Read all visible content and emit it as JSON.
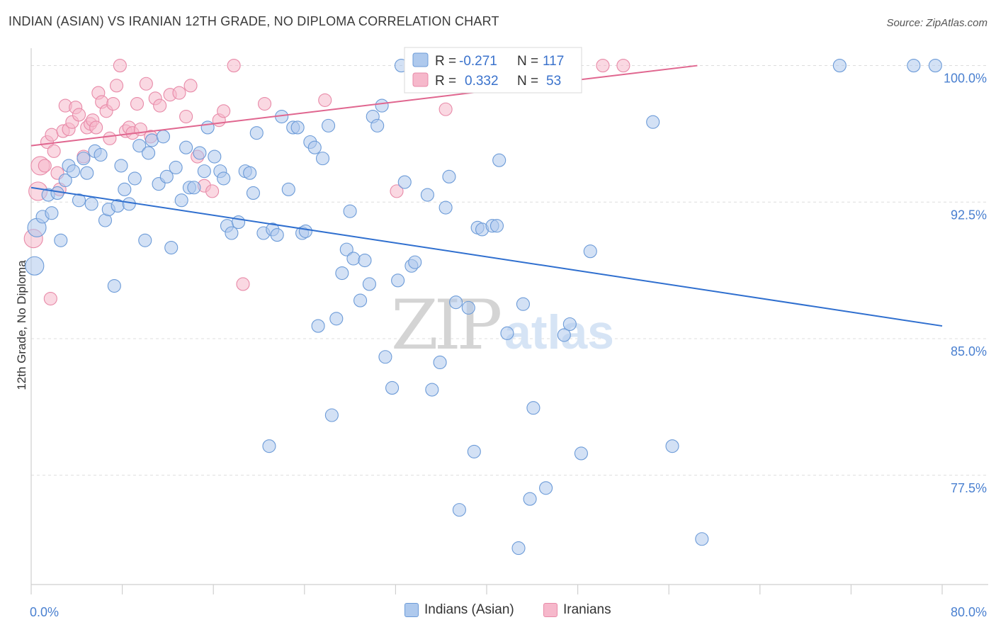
{
  "header": {
    "title": "INDIAN (ASIAN) VS IRANIAN 12TH GRADE, NO DIPLOMA CORRELATION CHART",
    "source": "Source: ZipAtlas.com"
  },
  "watermark": {
    "zip": "ZIP",
    "atlas": "atlas"
  },
  "legend_box": {
    "r_label": "R =",
    "n_label": "N =",
    "rows": [
      {
        "r": "-0.271",
        "n": "117"
      },
      {
        "r": "0.332",
        "n": "53"
      }
    ]
  },
  "colors": {
    "blue_fill": "#aec9ed",
    "blue_stroke": "#6c9bd8",
    "blue_line": "#2f6fcf",
    "pink_fill": "#f6b8cb",
    "pink_stroke": "#e88aa8",
    "pink_line": "#e0668f",
    "tick_label": "#4a80d0",
    "grid": "#dddddd"
  },
  "chart_data": {
    "type": "scatter",
    "title": "INDIAN (ASIAN) VS IRANIAN 12TH GRADE, NO DIPLOMA CORRELATION CHART",
    "ylabel": "12th Grade, No Diploma",
    "xlabel": "",
    "xlim": [
      0,
      80
    ],
    "ylim": [
      71.5,
      100.8
    ],
    "x_tick_labels": [
      {
        "value": 0,
        "label": "0.0%"
      },
      {
        "value": 80,
        "label": "80.0%"
      }
    ],
    "y_tick_labels": [
      {
        "value": 100,
        "label": "100.0%"
      },
      {
        "value": 92.5,
        "label": "92.5%"
      },
      {
        "value": 85,
        "label": "85.0%"
      },
      {
        "value": 77.5,
        "label": "77.5%"
      }
    ],
    "grid": true,
    "legend_position": "bottom",
    "series": [
      {
        "name": "Indians (Asian)",
        "color": "#aec9ed",
        "trend": {
          "x": [
            0,
            80
          ],
          "y": [
            93.3,
            85.7
          ]
        },
        "points": [
          [
            0.3,
            89.0
          ],
          [
            0.5,
            91.1
          ],
          [
            1.0,
            91.7
          ],
          [
            1.5,
            92.9
          ],
          [
            1.8,
            91.9
          ],
          [
            2.3,
            93.0
          ],
          [
            2.6,
            90.4
          ],
          [
            3.0,
            93.7
          ],
          [
            3.3,
            94.5
          ],
          [
            3.7,
            94.2
          ],
          [
            4.2,
            92.6
          ],
          [
            4.6,
            94.9
          ],
          [
            4.9,
            94.1
          ],
          [
            5.3,
            92.4
          ],
          [
            5.6,
            95.3
          ],
          [
            6.1,
            95.1
          ],
          [
            6.5,
            91.5
          ],
          [
            6.8,
            92.1
          ],
          [
            7.3,
            87.9
          ],
          [
            7.6,
            92.3
          ],
          [
            7.9,
            94.5
          ],
          [
            8.2,
            93.2
          ],
          [
            8.6,
            92.4
          ],
          [
            9.1,
            93.8
          ],
          [
            9.5,
            95.6
          ],
          [
            10.0,
            90.4
          ],
          [
            10.3,
            95.2
          ],
          [
            10.6,
            95.9
          ],
          [
            11.2,
            93.5
          ],
          [
            11.6,
            96.1
          ],
          [
            11.9,
            93.9
          ],
          [
            12.3,
            90.0
          ],
          [
            12.7,
            94.4
          ],
          [
            13.2,
            92.6
          ],
          [
            13.6,
            95.5
          ],
          [
            13.9,
            93.3
          ],
          [
            14.3,
            93.3
          ],
          [
            14.8,
            95.2
          ],
          [
            15.2,
            94.2
          ],
          [
            15.5,
            96.6
          ],
          [
            16.1,
            95.0
          ],
          [
            16.6,
            94.2
          ],
          [
            16.9,
            93.8
          ],
          [
            17.2,
            91.2
          ],
          [
            17.6,
            90.8
          ],
          [
            18.2,
            91.4
          ],
          [
            18.8,
            94.2
          ],
          [
            19.2,
            94.1
          ],
          [
            19.5,
            93.0
          ],
          [
            19.8,
            96.3
          ],
          [
            20.4,
            90.8
          ],
          [
            20.9,
            79.1
          ],
          [
            21.2,
            91.0
          ],
          [
            21.6,
            90.7
          ],
          [
            22.0,
            97.2
          ],
          [
            22.6,
            93.2
          ],
          [
            23.0,
            96.6
          ],
          [
            23.4,
            96.6
          ],
          [
            23.8,
            90.8
          ],
          [
            24.1,
            90.9
          ],
          [
            24.5,
            95.8
          ],
          [
            24.9,
            95.5
          ],
          [
            25.2,
            85.7
          ],
          [
            25.6,
            94.9
          ],
          [
            26.1,
            96.7
          ],
          [
            26.4,
            80.8
          ],
          [
            26.8,
            86.1
          ],
          [
            27.3,
            88.6
          ],
          [
            27.7,
            89.9
          ],
          [
            28.0,
            92.0
          ],
          [
            28.3,
            89.4
          ],
          [
            28.9,
            87.1
          ],
          [
            29.3,
            89.3
          ],
          [
            29.7,
            88.0
          ],
          [
            30.0,
            97.2
          ],
          [
            30.4,
            96.7
          ],
          [
            30.8,
            97.8
          ],
          [
            31.1,
            84.0
          ],
          [
            31.7,
            82.3
          ],
          [
            32.2,
            88.2
          ],
          [
            32.5,
            100.0
          ],
          [
            32.8,
            93.6
          ],
          [
            33.4,
            89.0
          ],
          [
            33.7,
            89.2
          ],
          [
            34.8,
            92.9
          ],
          [
            35.2,
            82.2
          ],
          [
            35.9,
            83.7
          ],
          [
            36.4,
            92.2
          ],
          [
            36.7,
            93.9
          ],
          [
            37.3,
            87.0
          ],
          [
            37.6,
            75.6
          ],
          [
            38.4,
            86.7
          ],
          [
            38.9,
            78.8
          ],
          [
            39.2,
            91.1
          ],
          [
            39.6,
            91.0
          ],
          [
            40.5,
            91.2
          ],
          [
            40.9,
            91.2
          ],
          [
            41.1,
            94.8
          ],
          [
            41.8,
            85.3
          ],
          [
            42.8,
            73.5
          ],
          [
            43.2,
            86.9
          ],
          [
            43.8,
            76.2
          ],
          [
            44.1,
            81.2
          ],
          [
            45.2,
            76.8
          ],
          [
            45.6,
            100.0
          ],
          [
            46.8,
            85.2
          ],
          [
            47.3,
            85.8
          ],
          [
            48.3,
            78.7
          ],
          [
            49.1,
            89.8
          ],
          [
            54.6,
            96.9
          ],
          [
            56.3,
            79.1
          ],
          [
            58.9,
            74.0
          ],
          [
            71.0,
            100.0
          ],
          [
            77.5,
            100.0
          ],
          [
            79.4,
            100.0
          ]
        ]
      },
      {
        "name": "Iranians",
        "color": "#f6b8cb",
        "trend": {
          "x": [
            0,
            58.5
          ],
          "y": [
            95.6,
            100.0
          ]
        },
        "points": [
          [
            0.2,
            90.5
          ],
          [
            0.6,
            93.1
          ],
          [
            0.8,
            94.5
          ],
          [
            1.2,
            94.5
          ],
          [
            1.4,
            95.8
          ],
          [
            1.7,
            87.2
          ],
          [
            1.8,
            96.2
          ],
          [
            2.0,
            95.3
          ],
          [
            2.3,
            94.1
          ],
          [
            2.5,
            93.2
          ],
          [
            2.8,
            96.4
          ],
          [
            3.0,
            97.8
          ],
          [
            3.3,
            96.5
          ],
          [
            3.6,
            96.9
          ],
          [
            3.9,
            97.7
          ],
          [
            4.2,
            97.3
          ],
          [
            4.6,
            95.0
          ],
          [
            4.9,
            96.6
          ],
          [
            5.2,
            96.8
          ],
          [
            5.4,
            97.0
          ],
          [
            5.7,
            96.6
          ],
          [
            5.9,
            98.5
          ],
          [
            6.2,
            98.0
          ],
          [
            6.6,
            97.5
          ],
          [
            6.9,
            96.0
          ],
          [
            7.2,
            97.9
          ],
          [
            7.5,
            98.9
          ],
          [
            7.8,
            100.0
          ],
          [
            8.3,
            96.4
          ],
          [
            8.6,
            96.6
          ],
          [
            8.9,
            96.3
          ],
          [
            9.3,
            97.9
          ],
          [
            9.6,
            96.5
          ],
          [
            10.1,
            99.0
          ],
          [
            10.5,
            96.1
          ],
          [
            10.9,
            98.2
          ],
          [
            11.3,
            97.8
          ],
          [
            12.2,
            98.4
          ],
          [
            13.0,
            98.5
          ],
          [
            13.6,
            97.2
          ],
          [
            14.0,
            98.9
          ],
          [
            14.6,
            95.0
          ],
          [
            15.2,
            93.4
          ],
          [
            15.9,
            93.1
          ],
          [
            16.5,
            97.0
          ],
          [
            16.9,
            97.5
          ],
          [
            17.8,
            100.0
          ],
          [
            18.6,
            88.0
          ],
          [
            20.5,
            97.9
          ],
          [
            25.8,
            98.1
          ],
          [
            32.1,
            93.1
          ],
          [
            36.4,
            97.6
          ],
          [
            50.2,
            100.0
          ],
          [
            52.0,
            100.0
          ]
        ]
      }
    ]
  },
  "bottom_legend": [
    {
      "label": "Indians (Asian)"
    },
    {
      "label": "Iranians"
    }
  ]
}
